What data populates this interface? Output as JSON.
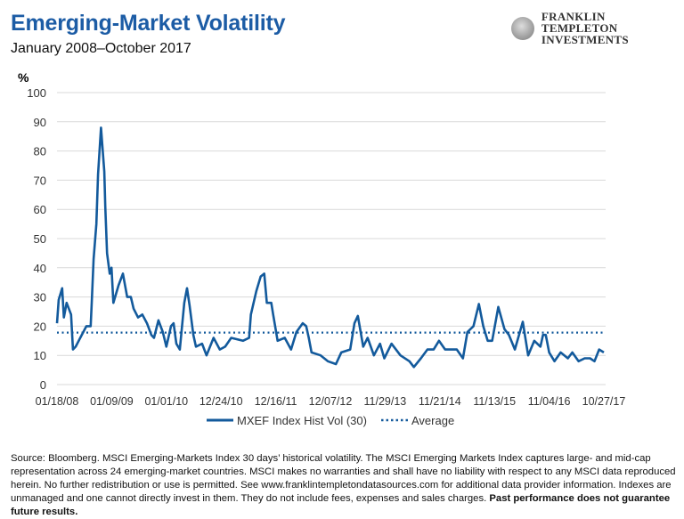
{
  "header": {
    "title": "Emerging-Market Volatility",
    "subtitle": "January 2008–October 2017",
    "logo_line1": "FRANKLIN TEMPLETON",
    "logo_line2": "INVESTMENTS"
  },
  "colors": {
    "title": "#1c5ca5",
    "series": "#135a9c",
    "grid": "#d9d9d9"
  },
  "chart_data": {
    "type": "line",
    "title": "Emerging-Market Volatility",
    "subtitle": "January 2008–October 2017",
    "ylabel": "%",
    "xlabel": "",
    "ylim": [
      0,
      100
    ],
    "yticks": [
      0,
      10,
      20,
      30,
      40,
      50,
      60,
      70,
      80,
      90,
      100
    ],
    "xlim": [
      "2008-01-18",
      "2017-10-27"
    ],
    "xtick_labels": [
      "01/18/08",
      "01/09/09",
      "01/01/10",
      "12/24/10",
      "12/16/11",
      "12/07/12",
      "11/29/13",
      "11/21/14",
      "11/13/15",
      "11/04/16",
      "10/27/17"
    ],
    "xtick_dates": [
      "2008-01-18",
      "2009-01-09",
      "2010-01-01",
      "2010-12-24",
      "2011-12-16",
      "2012-12-07",
      "2013-11-29",
      "2014-11-21",
      "2015-11-13",
      "2016-11-04",
      "2017-10-27"
    ],
    "grid": true,
    "legend_position": "bottom",
    "series": [
      {
        "name": "MXEF Index Hist Vol (30)",
        "style": "solid",
        "points": [
          [
            "2008-01-18",
            21
          ],
          [
            "2008-01-29",
            29
          ],
          [
            "2008-02-21",
            33
          ],
          [
            "2008-03-03",
            23
          ],
          [
            "2008-03-21",
            28
          ],
          [
            "2008-04-19",
            24
          ],
          [
            "2008-05-01",
            12
          ],
          [
            "2008-05-19",
            13
          ],
          [
            "2008-06-18",
            16
          ],
          [
            "2008-07-28",
            20
          ],
          [
            "2008-08-25",
            20
          ],
          [
            "2008-09-01",
            28
          ],
          [
            "2008-09-13",
            43
          ],
          [
            "2008-10-01",
            55
          ],
          [
            "2008-10-12",
            72
          ],
          [
            "2008-10-31",
            88
          ],
          [
            "2008-11-22",
            73
          ],
          [
            "2008-11-28",
            61
          ],
          [
            "2008-12-10",
            45
          ],
          [
            "2008-12-27",
            38
          ],
          [
            "2009-01-08",
            40
          ],
          [
            "2009-01-20",
            28
          ],
          [
            "2009-02-23",
            34
          ],
          [
            "2009-03-23",
            38
          ],
          [
            "2009-04-20",
            30
          ],
          [
            "2009-05-14",
            30
          ],
          [
            "2009-06-01",
            26
          ],
          [
            "2009-06-30",
            23
          ],
          [
            "2009-07-28",
            24
          ],
          [
            "2009-08-27",
            21
          ],
          [
            "2009-09-25",
            17
          ],
          [
            "2009-10-12",
            16
          ],
          [
            "2009-11-10",
            22
          ],
          [
            "2009-12-09",
            18
          ],
          [
            "2010-01-01",
            13
          ],
          [
            "2010-01-31",
            20
          ],
          [
            "2010-02-17",
            21
          ],
          [
            "2010-03-07",
            14
          ],
          [
            "2010-03-30",
            12
          ],
          [
            "2010-04-28",
            28
          ],
          [
            "2010-05-16",
            33
          ],
          [
            "2010-06-02",
            27
          ],
          [
            "2010-06-26",
            17
          ],
          [
            "2010-07-13",
            13
          ],
          [
            "2010-08-22",
            14
          ],
          [
            "2010-09-20",
            10
          ],
          [
            "2010-11-05",
            16
          ],
          [
            "2010-12-16",
            12
          ],
          [
            "2011-01-20",
            13
          ],
          [
            "2011-02-28",
            16
          ],
          [
            "2011-05-16",
            15
          ],
          [
            "2011-06-25",
            16
          ],
          [
            "2011-07-07",
            24
          ],
          [
            "2011-08-11",
            32
          ],
          [
            "2011-09-09",
            37
          ],
          [
            "2011-10-02",
            38
          ],
          [
            "2011-10-19",
            28
          ],
          [
            "2011-11-17",
            28
          ],
          [
            "2011-11-29",
            24
          ],
          [
            "2011-12-28",
            15
          ],
          [
            "2012-02-13",
            16
          ],
          [
            "2012-03-25",
            12
          ],
          [
            "2012-04-29",
            18
          ],
          [
            "2012-06-09",
            21
          ],
          [
            "2012-07-02",
            20
          ],
          [
            "2012-07-19",
            16
          ],
          [
            "2012-08-06",
            11
          ],
          [
            "2012-10-04",
            10
          ],
          [
            "2012-11-20",
            8
          ],
          [
            "2013-01-12",
            7
          ],
          [
            "2013-02-16",
            11
          ],
          [
            "2013-04-15",
            12
          ],
          [
            "2013-05-13",
            21
          ],
          [
            "2013-06-04",
            23.5
          ],
          [
            "2013-07-09",
            13
          ],
          [
            "2013-08-07",
            16
          ],
          [
            "2013-09-17",
            10
          ],
          [
            "2013-10-27",
            14
          ],
          [
            "2013-11-24",
            9
          ],
          [
            "2014-01-10",
            14
          ],
          [
            "2014-03-09",
            10
          ],
          [
            "2014-05-07",
            8
          ],
          [
            "2014-06-05",
            6
          ],
          [
            "2014-07-21",
            9
          ],
          [
            "2014-09-01",
            12
          ],
          [
            "2014-10-12",
            12
          ],
          [
            "2014-11-16",
            15
          ],
          [
            "2014-12-26",
            12
          ],
          [
            "2015-02-05",
            12
          ],
          [
            "2015-03-12",
            12
          ],
          [
            "2015-04-21",
            9
          ],
          [
            "2015-05-20",
            18
          ],
          [
            "2015-06-29",
            20
          ],
          [
            "2015-08-03",
            27.6
          ],
          [
            "2015-09-01",
            20
          ],
          [
            "2015-09-30",
            15
          ],
          [
            "2015-10-29",
            15
          ],
          [
            "2015-12-08",
            26.6
          ],
          [
            "2016-01-17",
            19
          ],
          [
            "2016-02-15",
            17
          ],
          [
            "2016-03-25",
            12
          ],
          [
            "2016-05-16",
            21.5
          ],
          [
            "2016-06-20",
            10
          ],
          [
            "2016-07-30",
            15
          ],
          [
            "2016-09-08",
            13
          ],
          [
            "2016-09-25",
            17
          ],
          [
            "2016-10-13",
            17
          ],
          [
            "2016-11-04",
            11
          ],
          [
            "2016-12-09",
            8
          ],
          [
            "2017-01-18",
            11
          ],
          [
            "2017-03-06",
            9
          ],
          [
            "2017-04-04",
            11
          ],
          [
            "2017-05-15",
            8
          ],
          [
            "2017-06-24",
            9
          ],
          [
            "2017-07-29",
            9
          ],
          [
            "2017-08-27",
            8
          ],
          [
            "2017-09-26",
            12
          ],
          [
            "2017-10-27",
            11
          ]
        ]
      },
      {
        "name": "Average",
        "style": "dotted",
        "value": 17.8
      }
    ]
  },
  "footer": {
    "source_text": "Source: Bloomberg. MSCI Emerging-Markets Index 30 days’ historical volatility. The MSCI Emerging Markets Index captures large- and mid-cap representation across 24 emerging-market countries. MSCI makes no warranties and shall have no liability with respect to any MSCI data reproduced herein. No further redistribution or use is permitted. See www.franklintempletondatasources.com for additional data provider information. Indexes are unmanaged and one cannot directly invest in them. They do not include fees, expenses and sales charges. ",
    "disclaimer_bold": "Past performance does not guarantee future results."
  }
}
